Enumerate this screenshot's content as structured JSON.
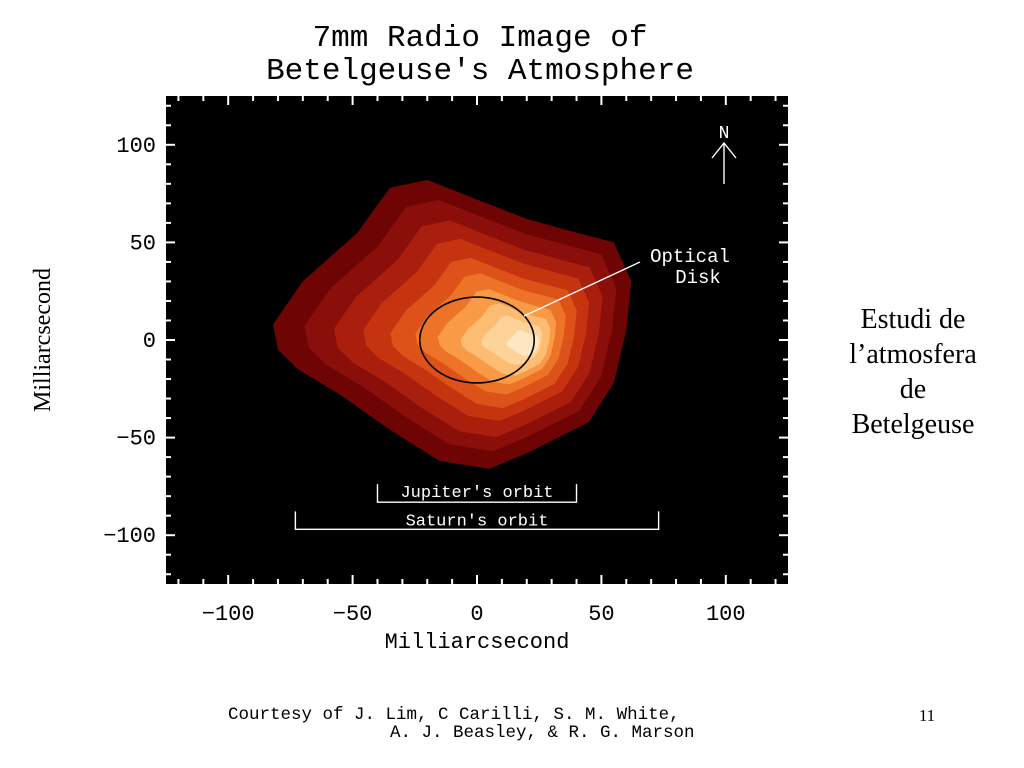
{
  "figure": {
    "title_line1": "7mm Radio Image of",
    "title_line2": "Betelgeuse's Atmosphere",
    "xlabel": "Milliarcsecond",
    "ylabel": "Milliarcsecond",
    "xticks": [
      "−100",
      "−50",
      "0",
      "50",
      "100"
    ],
    "yticks": [
      "100",
      "50",
      "0",
      "−50",
      "−100"
    ],
    "north_label": "N",
    "optical_disk_label_line1": "Optical",
    "optical_disk_label_line2": "Disk",
    "jupiter_label": "Jupiter's orbit",
    "saturn_label": "Saturn's orbit",
    "plot_background": "#000000",
    "colormap": [
      "#6e0404",
      "#8a0f0a",
      "#a91e0c",
      "#c6340f",
      "#dd5218",
      "#ed7328",
      "#f89a46",
      "#fcbc72",
      "#fdd399",
      "#fee6c2"
    ]
  },
  "chart_data": {
    "type": "heatmap",
    "title": "7mm Radio Image of Betelgeuse's Atmosphere",
    "xlabel": "Milliarcsecond",
    "ylabel": "Milliarcsecond",
    "xlim": [
      -125,
      125
    ],
    "ylim": [
      -125,
      125
    ],
    "x_ticks": [
      -100,
      -50,
      0,
      50,
      100
    ],
    "y_ticks": [
      -100,
      50,
      0,
      -50,
      100
    ],
    "annotations": [
      "Optical Disk",
      "N",
      "Jupiter's orbit",
      "Saturn's orbit"
    ],
    "optical_disk": {
      "center_x": 0,
      "center_y": 0,
      "radius_x": 23,
      "radius_y": 22
    },
    "jupiter_orbit_extent": [
      -40,
      40
    ],
    "saturn_orbit_extent": [
      -73,
      73
    ]
  },
  "side_caption": {
    "line1": "Estudi de",
    "line2": "l’atmosfera",
    "line3": "de",
    "line4": "Betelgeuse"
  },
  "credit": {
    "line1": "Courtesy of J. Lim, C Carilli, S. M. White,",
    "line2": "A. J. Beasley, & R. G. Marson"
  },
  "slide_number": "11"
}
